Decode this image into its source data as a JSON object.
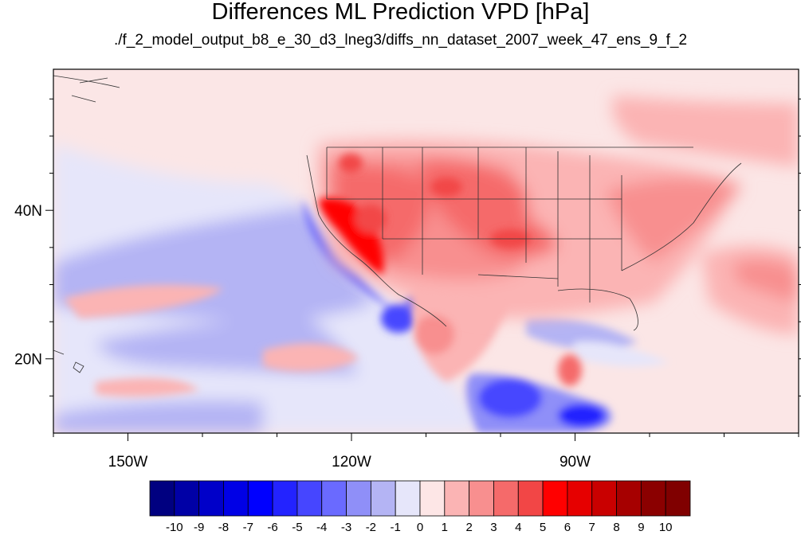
{
  "title": "Differences ML Prediction VPD [hPa]",
  "subtitle": "./f_2_model_output_b8_e_30_d3_lneg3/diffs_nn_dataset_2007_week_47_ens_9_f_2",
  "map": {
    "lon_range": [
      -160,
      -60
    ],
    "lat_range": [
      10,
      59
    ],
    "lon_ticks": [
      {
        "value": -150,
        "label": "150W"
      },
      {
        "value": -120,
        "label": "120W"
      },
      {
        "value": -90,
        "label": "90W"
      }
    ],
    "lat_ticks": [
      {
        "value": 40,
        "label": "40N"
      },
      {
        "value": 20,
        "label": "20N"
      }
    ],
    "background_color": "#fbe6e6"
  },
  "colorbar": {
    "labels": [
      "-10",
      "-9",
      "-8",
      "-7",
      "-6",
      "-5",
      "-4",
      "-3",
      "-2",
      "-1",
      "0",
      "1",
      "2",
      "3",
      "4",
      "5",
      "6",
      "7",
      "8",
      "9",
      "10"
    ],
    "colors": [
      "#000080",
      "#0000a6",
      "#0000c9",
      "#0000e6",
      "#0000ff",
      "#2323ff",
      "#4646ff",
      "#6a6aff",
      "#8f8ff8",
      "#b4b4f4",
      "#e6e6fa",
      "#fde6e6",
      "#fbb4b4",
      "#f88f8f",
      "#f56a6a",
      "#f24646",
      "#ff0000",
      "#e60000",
      "#c90000",
      "#a60000",
      "#8b0000",
      "#800000"
    ]
  }
}
